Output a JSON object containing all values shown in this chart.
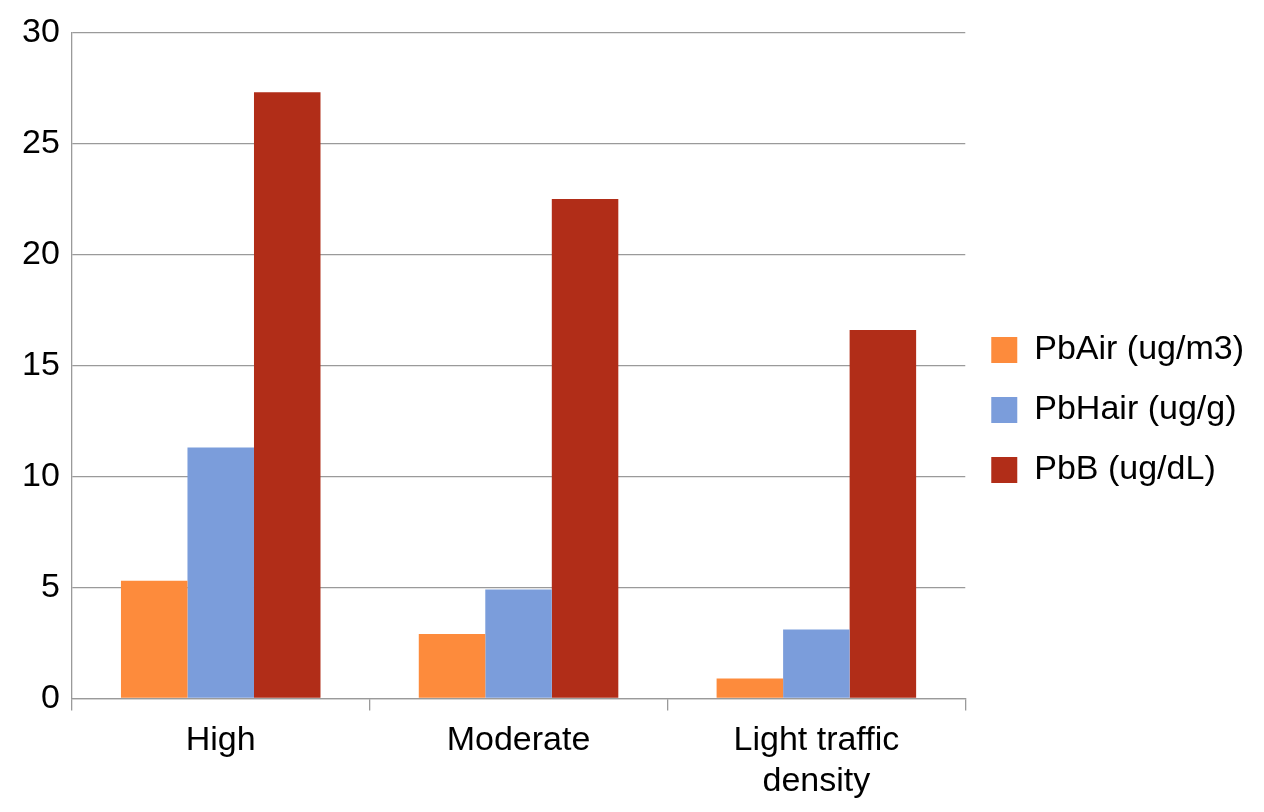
{
  "chart_data": {
    "type": "bar",
    "categories": [
      "High",
      "Moderate",
      "Light traffic density"
    ],
    "series": [
      {
        "name": "PbAir (ug/m3)",
        "color": "#fd8b3c",
        "values": [
          5.3,
          2.9,
          0.9
        ]
      },
      {
        "name": "PbHair (ug/g)",
        "color": "#7b9ddb",
        "values": [
          11.3,
          4.9,
          3.1
        ]
      },
      {
        "name": "PbB (ug/dL)",
        "color": "#b12d18",
        "values": [
          27.3,
          22.5,
          16.6
        ]
      }
    ],
    "ylim": [
      0,
      30
    ],
    "yticks": [
      0,
      5,
      10,
      15,
      20,
      25,
      30
    ],
    "grid": "y",
    "legend": "right"
  }
}
